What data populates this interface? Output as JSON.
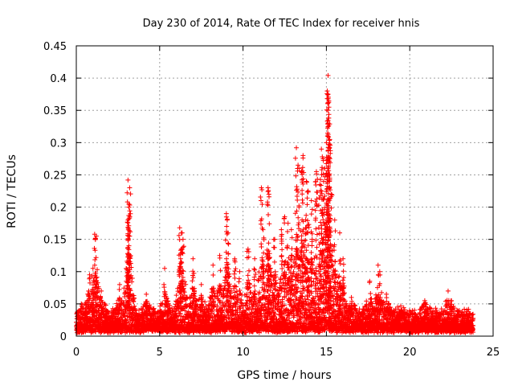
{
  "chart_data": {
    "type": "scatter",
    "title": "Day 230 of 2014, Rate Of TEC Index for receiver hnis",
    "xlabel": "GPS time / hours",
    "ylabel": "ROTI / TECUs",
    "xlim": [
      0,
      25
    ],
    "ylim": [
      0,
      0.45
    ],
    "xticks": [
      0,
      5,
      10,
      15,
      20,
      25
    ],
    "xtick_labels": [
      "0",
      "5",
      "10",
      "15",
      "20",
      "25"
    ],
    "yticks": [
      0,
      0.05,
      0.1,
      0.15,
      0.2,
      0.25,
      0.3,
      0.35,
      0.4,
      0.45
    ],
    "ytick_labels": [
      "0",
      "0.05",
      "0.1",
      "0.15",
      "0.2",
      "0.25",
      "0.3",
      "0.35",
      "0.4",
      "0.45"
    ],
    "grid": true,
    "marker": "+",
    "color": "#ff0000",
    "series": [
      {
        "name": "ROTI",
        "x_range": [
          0,
          23.8
        ],
        "baseline_band": [
          0.005,
          0.035
        ],
        "notable_points": [
          {
            "x": 0.1,
            "y": 0.032
          },
          {
            "x": 0.3,
            "y": 0.05
          },
          {
            "x": 0.8,
            "y": 0.095
          },
          {
            "x": 1.0,
            "y": 0.105
          },
          {
            "x": 1.1,
            "y": 0.158
          },
          {
            "x": 1.2,
            "y": 0.155
          },
          {
            "x": 1.5,
            "y": 0.07
          },
          {
            "x": 2.6,
            "y": 0.08
          },
          {
            "x": 3.0,
            "y": 0.085
          },
          {
            "x": 3.1,
            "y": 0.242
          },
          {
            "x": 3.2,
            "y": 0.23
          },
          {
            "x": 3.15,
            "y": 0.2
          },
          {
            "x": 3.1,
            "y": 0.18
          },
          {
            "x": 3.2,
            "y": 0.155
          },
          {
            "x": 4.2,
            "y": 0.065
          },
          {
            "x": 5.3,
            "y": 0.105
          },
          {
            "x": 6.2,
            "y": 0.168
          },
          {
            "x": 6.3,
            "y": 0.16
          },
          {
            "x": 6.4,
            "y": 0.15
          },
          {
            "x": 6.3,
            "y": 0.135
          },
          {
            "x": 7.0,
            "y": 0.12
          },
          {
            "x": 7.5,
            "y": 0.08
          },
          {
            "x": 8.2,
            "y": 0.11
          },
          {
            "x": 8.6,
            "y": 0.125
          },
          {
            "x": 9.0,
            "y": 0.19
          },
          {
            "x": 9.05,
            "y": 0.18
          },
          {
            "x": 9.1,
            "y": 0.16
          },
          {
            "x": 9.5,
            "y": 0.12
          },
          {
            "x": 9.8,
            "y": 0.1
          },
          {
            "x": 10.3,
            "y": 0.135
          },
          {
            "x": 10.7,
            "y": 0.12
          },
          {
            "x": 11.1,
            "y": 0.23
          },
          {
            "x": 11.5,
            "y": 0.23
          },
          {
            "x": 11.55,
            "y": 0.22
          },
          {
            "x": 11.2,
            "y": 0.165
          },
          {
            "x": 11.9,
            "y": 0.15
          },
          {
            "x": 12.3,
            "y": 0.165
          },
          {
            "x": 12.5,
            "y": 0.185
          },
          {
            "x": 12.7,
            "y": 0.175
          },
          {
            "x": 12.9,
            "y": 0.165
          },
          {
            "x": 13.2,
            "y": 0.292
          },
          {
            "x": 13.3,
            "y": 0.265
          },
          {
            "x": 13.5,
            "y": 0.255
          },
          {
            "x": 13.6,
            "y": 0.28
          },
          {
            "x": 13.8,
            "y": 0.24
          },
          {
            "x": 13.9,
            "y": 0.225
          },
          {
            "x": 14.1,
            "y": 0.21
          },
          {
            "x": 14.4,
            "y": 0.255
          },
          {
            "x": 14.6,
            "y": 0.235
          },
          {
            "x": 14.7,
            "y": 0.29
          },
          {
            "x": 14.8,
            "y": 0.275
          },
          {
            "x": 14.9,
            "y": 0.26
          },
          {
            "x": 15.0,
            "y": 0.3
          },
          {
            "x": 15.05,
            "y": 0.38
          },
          {
            "x": 15.1,
            "y": 0.404
          },
          {
            "x": 15.1,
            "y": 0.375
          },
          {
            "x": 15.15,
            "y": 0.355
          },
          {
            "x": 15.1,
            "y": 0.33
          },
          {
            "x": 15.2,
            "y": 0.305
          },
          {
            "x": 15.2,
            "y": 0.245
          },
          {
            "x": 15.3,
            "y": 0.22
          },
          {
            "x": 15.5,
            "y": 0.18
          },
          {
            "x": 15.8,
            "y": 0.16
          },
          {
            "x": 16.0,
            "y": 0.12
          },
          {
            "x": 16.5,
            "y": 0.06
          },
          {
            "x": 17.6,
            "y": 0.085
          },
          {
            "x": 18.1,
            "y": 0.11
          },
          {
            "x": 18.2,
            "y": 0.1
          },
          {
            "x": 18.6,
            "y": 0.065
          },
          {
            "x": 19.5,
            "y": 0.04
          },
          {
            "x": 20.9,
            "y": 0.055
          },
          {
            "x": 22.3,
            "y": 0.07
          },
          {
            "x": 22.5,
            "y": 0.055
          },
          {
            "x": 23.6,
            "y": 0.035
          }
        ]
      }
    ]
  }
}
